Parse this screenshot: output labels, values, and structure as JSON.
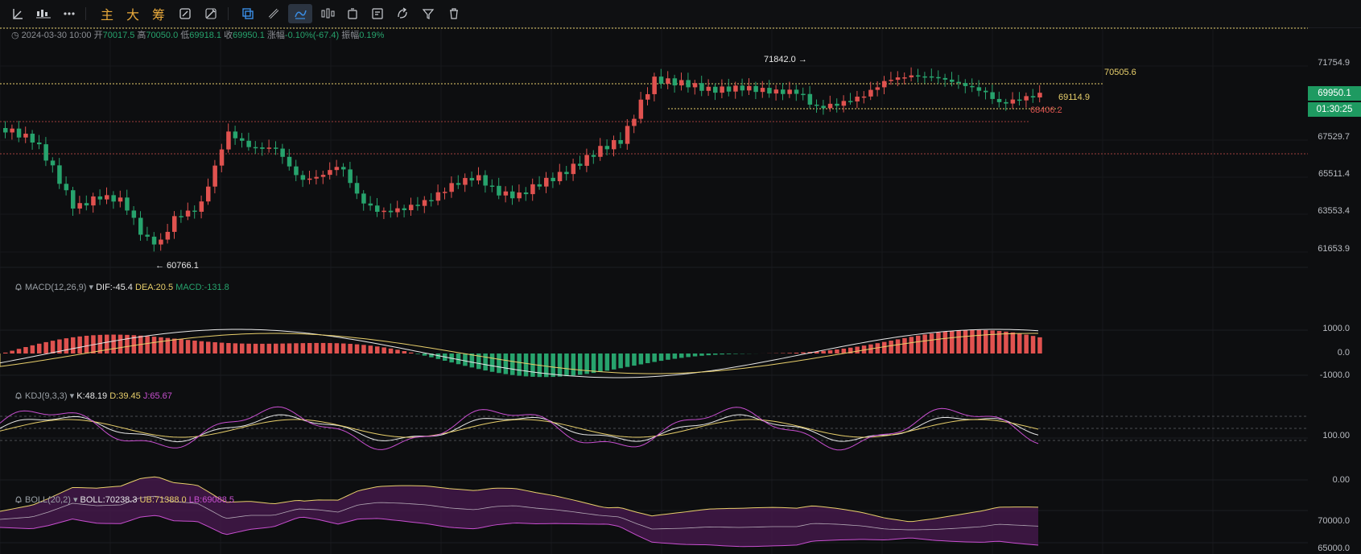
{
  "toolbar": {
    "labels": {
      "main": "主",
      "large": "大",
      "chips": "筹"
    },
    "tools": [
      "line-tool-icon",
      "indicator-icon",
      "more-icon",
      "main-label",
      "large-label",
      "chips-label",
      "draw-edit-icon",
      "brush-icon",
      "copy-icon",
      "ruler-icon",
      "magnet-icon",
      "candle-style-icon",
      "delete-mark-icon",
      "edit-note-icon",
      "transform-icon",
      "filter-icon",
      "trash-icon"
    ],
    "active": "magnet-icon"
  },
  "info": {
    "datetime": "2024-03-30 10:00",
    "open_label": "开",
    "open": "70017.5",
    "high_label": "高",
    "high": "70050.0",
    "low_label": "低",
    "low": "69918.1",
    "close_label": "收",
    "close": "69950.1",
    "change_label": "涨幅",
    "change": "-0.10%(-67.4)",
    "amp_label": "振幅",
    "amp": "0.19%"
  },
  "price_axis": [
    "71754.9",
    "67529.7",
    "65511.4",
    "63553.4",
    "61653.9"
  ],
  "price_badges": {
    "price": "69950.1",
    "countdown": "01:30:25"
  },
  "annotations": {
    "high": "71842.0 →",
    "low": "← 60766.1",
    "level_a": "70505.6",
    "level_b": "69114.9",
    "level_c": "68406.2"
  },
  "macd": {
    "name": "MACD(12,26,9)",
    "dif": "DIF:-45.4",
    "dea": "DEA:20.5",
    "macd": "MACD:-131.8",
    "axis": [
      "1000.0",
      "0.0",
      "-1000.0"
    ]
  },
  "kdj": {
    "name": "KDJ(9,3,3)",
    "k": "K:48.19",
    "d": "D:39.45",
    "j": "J:65.67",
    "axis": [
      "100.00",
      "0.00"
    ]
  },
  "boll": {
    "name": "BOLL(20,2)",
    "mid": "BOLL:70238.3",
    "ub": "UB:71388.0",
    "lb": "LB:69088.5",
    "axis": [
      "70000.0",
      "65000.0"
    ]
  },
  "colors": {
    "up": "#e0524f",
    "down": "#27a36d",
    "yellow": "#e8cf6b",
    "white": "#e8e8e8",
    "pink": "#c84fd0",
    "accent": "#e8a93b"
  }
}
